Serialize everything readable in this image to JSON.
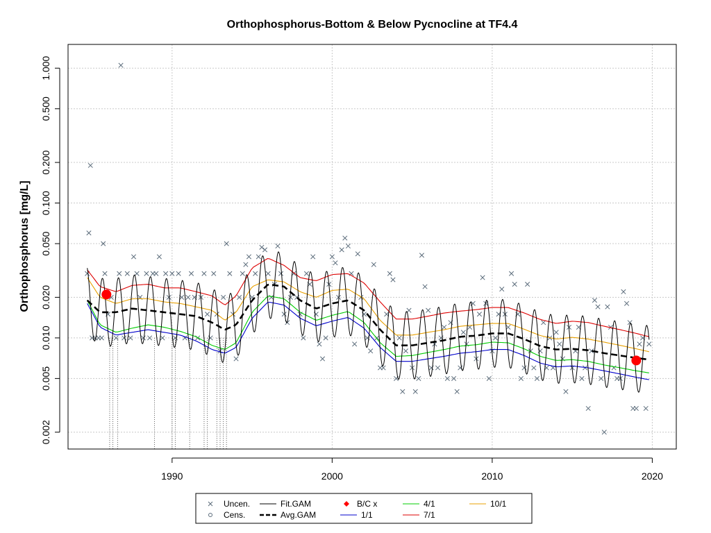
{
  "chart_data": {
    "type": "line",
    "title": "Orthophosphorus-Bottom & Below Pycnocline at TF4.4",
    "xlabel": "",
    "ylabel": "Orthophosphorus [mg/L]",
    "y_scale": "log",
    "xlim": [
      1983.5,
      2021.5
    ],
    "ylim": [
      0.0015,
      1.5
    ],
    "grid": true,
    "x_ticks": [
      1990,
      2000,
      2010,
      2020
    ],
    "x_tick_labels": [
      "1990",
      "2000",
      "2010",
      "2020"
    ],
    "y_ticks": [
      0.002,
      0.005,
      0.01,
      0.02,
      0.05,
      0.1,
      0.2,
      0.5,
      1.0
    ],
    "y_tick_labels": [
      "0.002",
      "0.005",
      "0.010",
      "0.020",
      "0.050",
      "0.100",
      "0.200",
      "0.500",
      "1.000"
    ],
    "colors": {
      "uncensored": "#5a6b7a",
      "fit_gam": "#000000",
      "avg_gam": "#000000",
      "bc": "#ff0000",
      "q1_1": "#0000cc",
      "q4_1": "#00cc00",
      "q7_1": "#dd0000",
      "q10_1": "#e8a000"
    },
    "legend": {
      "placement": "bottom-center",
      "entries": [
        {
          "label": "Uncen.",
          "key": "uncen"
        },
        {
          "label": "Fit.GAM",
          "key": "fit"
        },
        {
          "label": "B/C x",
          "key": "bc"
        },
        {
          "label": "4/1",
          "key": "q4"
        },
        {
          "label": "10/1",
          "key": "q10"
        },
        {
          "label": "Cens.",
          "key": "cens"
        },
        {
          "label": "Avg.GAM",
          "key": "avg"
        },
        {
          "label": "1/1",
          "key": "q1"
        },
        {
          "label": "7/1",
          "key": "q7"
        }
      ]
    },
    "bc_points": [
      [
        1985.9,
        0.021
      ],
      [
        2019.0,
        0.0068
      ]
    ],
    "avg_gam": {
      "x": [
        1984.7,
        1985.5,
        1986.5,
        1987.5,
        1988.5,
        1989.5,
        1990.5,
        1991.5,
        1992.5,
        1993.3,
        1994.0,
        1995.0,
        1996.0,
        1997.0,
        1998.0,
        1999.0,
        2000.0,
        2001.0,
        2002.0,
        2003.0,
        2004.0,
        2005.0,
        2006.0,
        2007.0,
        2008.0,
        2009.0,
        2010.0,
        2011.0,
        2012.0,
        2013.0,
        2014.0,
        2015.0,
        2016.0,
        2017.0,
        2018.0,
        2019.0,
        2019.8
      ],
      "y": [
        0.019,
        0.0155,
        0.0155,
        0.0165,
        0.016,
        0.0155,
        0.015,
        0.0145,
        0.013,
        0.0115,
        0.0125,
        0.019,
        0.025,
        0.024,
        0.019,
        0.0165,
        0.018,
        0.019,
        0.016,
        0.0115,
        0.0088,
        0.0088,
        0.0092,
        0.0096,
        0.0102,
        0.0104,
        0.0108,
        0.0108,
        0.0098,
        0.0087,
        0.0082,
        0.0083,
        0.0081,
        0.0077,
        0.0074,
        0.0071,
        0.0069
      ]
    },
    "q1_1": {
      "x": [
        1984.7,
        1985.5,
        1986.5,
        1987.5,
        1988.5,
        1989.5,
        1990.5,
        1991.5,
        1992.5,
        1993.3,
        1994.0,
        1995.0,
        1996.0,
        1997.0,
        1998.0,
        1999.0,
        2000.0,
        2001.0,
        2002.0,
        2003.0,
        2004.0,
        2005.0,
        2006.0,
        2007.0,
        2008.0,
        2009.0,
        2010.0,
        2011.0,
        2012.0,
        2013.0,
        2014.0,
        2015.0,
        2016.0,
        2017.0,
        2018.0,
        2019.0,
        2019.8
      ],
      "y": [
        0.018,
        0.012,
        0.0105,
        0.011,
        0.0115,
        0.011,
        0.0105,
        0.0095,
        0.0082,
        0.0077,
        0.0085,
        0.014,
        0.0185,
        0.0175,
        0.014,
        0.0123,
        0.0133,
        0.0142,
        0.0118,
        0.0085,
        0.0067,
        0.0067,
        0.007,
        0.0073,
        0.0077,
        0.0079,
        0.0082,
        0.0082,
        0.0074,
        0.0065,
        0.0061,
        0.0062,
        0.006,
        0.0057,
        0.0054,
        0.0051,
        0.0049
      ]
    },
    "q4_1": {
      "x": [
        1984.7,
        1985.5,
        1986.5,
        1987.5,
        1988.5,
        1989.5,
        1990.5,
        1991.5,
        1992.5,
        1993.3,
        1994.0,
        1995.0,
        1996.0,
        1997.0,
        1998.0,
        1999.0,
        2000.0,
        2001.0,
        2002.0,
        2003.0,
        2004.0,
        2005.0,
        2006.0,
        2007.0,
        2008.0,
        2009.0,
        2010.0,
        2011.0,
        2012.0,
        2013.0,
        2014.0,
        2015.0,
        2016.0,
        2017.0,
        2018.0,
        2019.0,
        2019.8
      ],
      "y": [
        0.019,
        0.0125,
        0.011,
        0.0118,
        0.0125,
        0.012,
        0.0112,
        0.0102,
        0.0088,
        0.0082,
        0.0092,
        0.0155,
        0.0205,
        0.0195,
        0.0155,
        0.0135,
        0.0147,
        0.0157,
        0.013,
        0.0092,
        0.0073,
        0.0074,
        0.0078,
        0.0082,
        0.0087,
        0.0089,
        0.0093,
        0.0092,
        0.0083,
        0.0073,
        0.0068,
        0.0069,
        0.0067,
        0.0063,
        0.006,
        0.0057,
        0.0055
      ]
    },
    "q7_1": {
      "x": [
        1984.7,
        1985.5,
        1986.5,
        1987.5,
        1988.5,
        1989.5,
        1990.5,
        1991.5,
        1992.5,
        1993.3,
        1994.0,
        1995.0,
        1996.0,
        1997.0,
        1998.0,
        1999.0,
        2000.0,
        2001.0,
        2002.0,
        2003.0,
        2004.0,
        2005.0,
        2006.0,
        2007.0,
        2008.0,
        2009.0,
        2010.0,
        2011.0,
        2012.0,
        2013.0,
        2014.0,
        2015.0,
        2016.0,
        2017.0,
        2018.0,
        2019.0,
        2019.8
      ],
      "y": [
        0.032,
        0.024,
        0.022,
        0.0245,
        0.025,
        0.0235,
        0.0235,
        0.022,
        0.0205,
        0.0175,
        0.0205,
        0.033,
        0.039,
        0.0345,
        0.028,
        0.0265,
        0.0295,
        0.03,
        0.0255,
        0.0185,
        0.0138,
        0.0138,
        0.0145,
        0.0153,
        0.0158,
        0.0162,
        0.0168,
        0.0168,
        0.0153,
        0.0137,
        0.0128,
        0.0133,
        0.013,
        0.0122,
        0.0115,
        0.0108,
        0.0102
      ]
    },
    "q10_1": {
      "x": [
        1984.7,
        1985.5,
        1986.5,
        1987.5,
        1988.5,
        1989.5,
        1990.5,
        1991.5,
        1992.5,
        1993.3,
        1994.0,
        1995.0,
        1996.0,
        1997.0,
        1998.0,
        1999.0,
        2000.0,
        2001.0,
        2002.0,
        2003.0,
        2004.0,
        2005.0,
        2006.0,
        2007.0,
        2008.0,
        2009.0,
        2010.0,
        2011.0,
        2012.0,
        2013.0,
        2014.0,
        2015.0,
        2016.0,
        2017.0,
        2018.0,
        2019.0,
        2019.8
      ],
      "y": [
        0.028,
        0.02,
        0.018,
        0.0195,
        0.0195,
        0.0185,
        0.018,
        0.017,
        0.016,
        0.0135,
        0.0155,
        0.024,
        0.027,
        0.026,
        0.022,
        0.02,
        0.0225,
        0.023,
        0.0195,
        0.0135,
        0.0105,
        0.0105,
        0.011,
        0.0115,
        0.0122,
        0.0125,
        0.0128,
        0.0128,
        0.0116,
        0.0104,
        0.0098,
        0.0101,
        0.0098,
        0.0093,
        0.0088,
        0.0083,
        0.0079
      ]
    },
    "fit_gam": {
      "x_start": 1984.7,
      "x_end": 2019.8,
      "seasonal_amplitude_log": 0.58,
      "peak_phase": 0.65
    },
    "censored_points": [
      [
        1986.1,
        0.01
      ],
      [
        1986.3,
        0.01
      ],
      [
        1986.6,
        0.01
      ],
      [
        1988.9,
        0.01
      ],
      [
        1990.0,
        0.01
      ],
      [
        1990.2,
        0.01
      ],
      [
        1991.1,
        0.01
      ],
      [
        1992.0,
        0.01
      ],
      [
        1992.2,
        0.01
      ],
      [
        1992.8,
        0.01
      ],
      [
        1993.0,
        0.01
      ],
      [
        1993.2,
        0.01
      ],
      [
        1993.4,
        0.01
      ]
    ],
    "uncensored_points": [
      [
        1984.7,
        0.03
      ],
      [
        1984.8,
        0.06
      ],
      [
        1984.9,
        0.19
      ],
      [
        1985.0,
        0.01
      ],
      [
        1985.2,
        0.01
      ],
      [
        1985.4,
        0.01
      ],
      [
        1985.6,
        0.01
      ],
      [
        1985.7,
        0.05
      ],
      [
        1985.8,
        0.03
      ],
      [
        1986.0,
        0.015
      ],
      [
        1986.2,
        0.02
      ],
      [
        1986.5,
        0.01
      ],
      [
        1986.7,
        0.03
      ],
      [
        1986.8,
        1.05
      ],
      [
        1987.0,
        0.01
      ],
      [
        1987.2,
        0.03
      ],
      [
        1987.4,
        0.01
      ],
      [
        1987.6,
        0.04
      ],
      [
        1987.8,
        0.03
      ],
      [
        1988.0,
        0.02
      ],
      [
        1988.2,
        0.01
      ],
      [
        1988.4,
        0.03
      ],
      [
        1988.6,
        0.01
      ],
      [
        1988.8,
        0.03
      ],
      [
        1989.0,
        0.03
      ],
      [
        1989.2,
        0.04
      ],
      [
        1989.4,
        0.01
      ],
      [
        1989.6,
        0.03
      ],
      [
        1989.8,
        0.02
      ],
      [
        1990.0,
        0.03
      ],
      [
        1990.2,
        0.01
      ],
      [
        1990.4,
        0.03
      ],
      [
        1990.6,
        0.02
      ],
      [
        1990.8,
        0.01
      ],
      [
        1991.0,
        0.02
      ],
      [
        1991.2,
        0.03
      ],
      [
        1991.4,
        0.02
      ],
      [
        1991.6,
        0.01
      ],
      [
        1991.8,
        0.02
      ],
      [
        1992.0,
        0.03
      ],
      [
        1992.2,
        0.015
      ],
      [
        1992.4,
        0.01
      ],
      [
        1992.6,
        0.03
      ],
      [
        1992.8,
        0.015
      ],
      [
        1993.0,
        0.008
      ],
      [
        1993.2,
        0.02
      ],
      [
        1993.4,
        0.05
      ],
      [
        1993.6,
        0.03
      ],
      [
        1993.8,
        0.015
      ],
      [
        1994.0,
        0.007
      ],
      [
        1994.2,
        0.02
      ],
      [
        1994.4,
        0.03
      ],
      [
        1994.6,
        0.035
      ],
      [
        1994.8,
        0.04
      ],
      [
        1995.0,
        0.02
      ],
      [
        1995.2,
        0.03
      ],
      [
        1995.4,
        0.04
      ],
      [
        1995.6,
        0.047
      ],
      [
        1995.8,
        0.045
      ],
      [
        1996.0,
        0.03
      ],
      [
        1996.2,
        0.02
      ],
      [
        1996.4,
        0.025
      ],
      [
        1996.6,
        0.048
      ],
      [
        1996.8,
        0.03
      ],
      [
        1997.0,
        0.015
      ],
      [
        1997.2,
        0.013
      ],
      [
        1997.4,
        0.02
      ],
      [
        1997.6,
        0.03
      ],
      [
        1997.8,
        0.02
      ],
      [
        1998.0,
        0.015
      ],
      [
        1998.2,
        0.01
      ],
      [
        1998.4,
        0.03
      ],
      [
        1998.6,
        0.025
      ],
      [
        1998.8,
        0.04
      ],
      [
        1999.0,
        0.015
      ],
      [
        1999.2,
        0.009
      ],
      [
        1999.4,
        0.007
      ],
      [
        1999.6,
        0.01
      ],
      [
        1999.8,
        0.025
      ],
      [
        2000.0,
        0.04
      ],
      [
        2000.2,
        0.036
      ],
      [
        2000.4,
        0.02
      ],
      [
        2000.6,
        0.045
      ],
      [
        2000.8,
        0.055
      ],
      [
        2001.0,
        0.048
      ],
      [
        2001.2,
        0.03
      ],
      [
        2001.4,
        0.009
      ],
      [
        2001.6,
        0.042
      ],
      [
        2001.8,
        0.02
      ],
      [
        2002.0,
        0.015
      ],
      [
        2002.2,
        0.01
      ],
      [
        2002.4,
        0.008
      ],
      [
        2002.6,
        0.035
      ],
      [
        2002.8,
        0.01
      ],
      [
        2003.0,
        0.006
      ],
      [
        2003.2,
        0.006
      ],
      [
        2003.4,
        0.015
      ],
      [
        2003.6,
        0.03
      ],
      [
        2003.8,
        0.027
      ],
      [
        2004.0,
        0.005
      ],
      [
        2004.2,
        0.01
      ],
      [
        2004.4,
        0.004
      ],
      [
        2004.6,
        0.008
      ],
      [
        2004.8,
        0.016
      ],
      [
        2005.0,
        0.006
      ],
      [
        2005.2,
        0.004
      ],
      [
        2005.4,
        0.005
      ],
      [
        2005.6,
        0.041
      ],
      [
        2005.8,
        0.024
      ],
      [
        2006.0,
        0.016
      ],
      [
        2006.2,
        0.006
      ],
      [
        2006.4,
        0.009
      ],
      [
        2006.6,
        0.006
      ],
      [
        2006.8,
        0.01
      ],
      [
        2007.0,
        0.012
      ],
      [
        2007.2,
        0.005
      ],
      [
        2007.4,
        0.013
      ],
      [
        2007.6,
        0.005
      ],
      [
        2007.8,
        0.004
      ],
      [
        2008.0,
        0.006
      ],
      [
        2008.2,
        0.011
      ],
      [
        2008.4,
        0.009
      ],
      [
        2008.6,
        0.012
      ],
      [
        2008.8,
        0.018
      ],
      [
        2009.0,
        0.007
      ],
      [
        2009.2,
        0.015
      ],
      [
        2009.4,
        0.028
      ],
      [
        2009.6,
        0.018
      ],
      [
        2009.8,
        0.005
      ],
      [
        2010.0,
        0.008
      ],
      [
        2010.2,
        0.01
      ],
      [
        2010.4,
        0.015
      ],
      [
        2010.6,
        0.023
      ],
      [
        2010.8,
        0.015
      ],
      [
        2011.0,
        0.012
      ],
      [
        2011.2,
        0.03
      ],
      [
        2011.4,
        0.025
      ],
      [
        2011.6,
        0.015
      ],
      [
        2011.8,
        0.005
      ],
      [
        2012.0,
        0.006
      ],
      [
        2012.2,
        0.025
      ],
      [
        2012.4,
        0.008
      ],
      [
        2012.6,
        0.006
      ],
      [
        2012.8,
        0.005
      ],
      [
        2013.0,
        0.008
      ],
      [
        2013.2,
        0.013
      ],
      [
        2013.4,
        0.006
      ],
      [
        2013.6,
        0.01
      ],
      [
        2013.8,
        0.006
      ],
      [
        2014.0,
        0.011
      ],
      [
        2014.2,
        0.009
      ],
      [
        2014.4,
        0.007
      ],
      [
        2014.6,
        0.004
      ],
      [
        2014.8,
        0.012
      ],
      [
        2015.0,
        0.006
      ],
      [
        2015.2,
        0.008
      ],
      [
        2015.4,
        0.012
      ],
      [
        2015.6,
        0.005
      ],
      [
        2015.8,
        0.006
      ],
      [
        2016.0,
        0.003
      ],
      [
        2016.2,
        0.008
      ],
      [
        2016.4,
        0.019
      ],
      [
        2016.6,
        0.017
      ],
      [
        2016.8,
        0.005
      ],
      [
        2017.0,
        0.002
      ],
      [
        2017.2,
        0.017
      ],
      [
        2017.4,
        0.012
      ],
      [
        2017.6,
        0.006
      ],
      [
        2017.8,
        0.005
      ],
      [
        2018.0,
        0.005
      ],
      [
        2018.2,
        0.022
      ],
      [
        2018.4,
        0.018
      ],
      [
        2018.6,
        0.013
      ],
      [
        2018.8,
        0.003
      ],
      [
        2019.0,
        0.003
      ],
      [
        2019.2,
        0.009
      ],
      [
        2019.4,
        0.01
      ],
      [
        2019.6,
        0.003
      ],
      [
        2019.8,
        0.009
      ]
    ]
  }
}
